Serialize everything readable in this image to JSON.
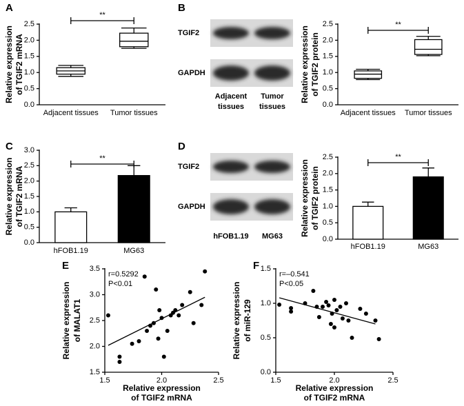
{
  "chart_data": [
    {
      "type": "box",
      "panel": "A",
      "ylabel": [
        "Relative expression",
        "of TGIF2 mRNA"
      ],
      "categories": [
        "Adjacent tissues",
        "Tumor tissues"
      ],
      "boxes": [
        {
          "min": 0.88,
          "q1": 0.95,
          "median": 1.05,
          "q3": 1.15,
          "max": 1.22
        },
        {
          "min": 1.75,
          "q1": 1.8,
          "median": 1.97,
          "q3": 2.22,
          "max": 2.38
        }
      ],
      "ylim": [
        0,
        2.5
      ],
      "yticks": [
        {
          "value": 0,
          "label": "0.0"
        },
        0.5,
        {
          "value": 1,
          "label": "1.0"
        },
        1.5,
        {
          "value": 2,
          "label": "2.0"
        },
        2.5
      ],
      "annotation": "**"
    },
    {
      "type": "box",
      "panel": "B",
      "ylabel": [
        "Relative expression",
        "of TGIF2 protein"
      ],
      "blot": {
        "rows": [
          "TGIF2",
          "GAPDH"
        ],
        "lanes": [
          [
            "Adjacent",
            "tissues"
          ],
          [
            "Tumor",
            "tissues"
          ]
        ]
      },
      "categories": [
        "Adjacent tissues",
        "Tumor tissues"
      ],
      "boxes": [
        {
          "min": 0.78,
          "q1": 0.82,
          "median": 0.95,
          "q3": 1.05,
          "max": 1.1
        },
        {
          "min": 1.52,
          "q1": 1.56,
          "median": 1.72,
          "q3": 2.02,
          "max": 2.12
        }
      ],
      "ylim": [
        0,
        2.5
      ],
      "yticks": [
        {
          "value": 0,
          "label": "0.0"
        },
        0.5,
        {
          "value": 1,
          "label": "1.0"
        },
        1.5,
        {
          "value": 2,
          "label": "2.0"
        },
        2.5
      ],
      "annotation": "**"
    },
    {
      "type": "bar",
      "panel": "C",
      "ylabel": [
        "Relative expression",
        "of TGIF2 mRNA"
      ],
      "categories": [
        "hFOB1.19",
        "MG63"
      ],
      "values": [
        1.0,
        2.18
      ],
      "errors": [
        0.13,
        0.32
      ],
      "colors": [
        "#ffffff",
        "#000000"
      ],
      "ylim": [
        0,
        3
      ],
      "yticks": [
        {
          "value": 0,
          "label": "0.0"
        },
        0.5,
        {
          "value": 1,
          "label": "1.0"
        },
        1.5,
        {
          "value": 2,
          "label": "2.0"
        },
        2.5,
        {
          "value": 3,
          "label": "3.0"
        }
      ],
      "annotation": "**"
    },
    {
      "type": "bar",
      "panel": "D",
      "ylabel": [
        "Relative expression",
        "of TGIF2 protein"
      ],
      "blot": {
        "rows": [
          "TGIF2",
          "GAPDH"
        ],
        "lanes": [
          [
            "hFOB1.19"
          ],
          [
            "MG63"
          ]
        ]
      },
      "categories": [
        "hFOB1.19",
        "MG63"
      ],
      "values": [
        1.0,
        1.9
      ],
      "errors": [
        0.13,
        0.27
      ],
      "colors": [
        "#ffffff",
        "#000000"
      ],
      "ylim": [
        0,
        2.5
      ],
      "yticks": [
        {
          "value": 0,
          "label": "0.0"
        },
        0.5,
        {
          "value": 1,
          "label": "1.0"
        },
        1.5,
        {
          "value": 2,
          "label": "2.0"
        },
        2.5
      ],
      "annotation": "**"
    },
    {
      "type": "scatter",
      "panel": "E",
      "ylabel": [
        "Relative expression",
        "of MALAT1"
      ],
      "xlabel": [
        "Relative expression",
        "of TGIF2 mRNA"
      ],
      "annotations": [
        "r=0.5292",
        "P<0.01"
      ],
      "x": [
        1.53,
        1.63,
        1.63,
        1.74,
        1.8,
        1.85,
        1.87,
        1.9,
        1.93,
        1.95,
        1.97,
        1.98,
        2.0,
        2.02,
        2.05,
        2.08,
        2.1,
        2.12,
        2.15,
        2.18,
        2.25,
        2.28,
        2.35,
        2.38
      ],
      "y": [
        2.6,
        1.8,
        1.7,
        2.05,
        2.1,
        3.35,
        2.3,
        2.4,
        2.45,
        3.1,
        2.15,
        2.7,
        2.55,
        1.8,
        2.3,
        2.6,
        2.65,
        2.7,
        2.6,
        2.8,
        3.05,
        2.45,
        2.8,
        3.45
      ],
      "trendline": {
        "x": [
          1.53,
          2.38
        ],
        "y": [
          2.02,
          2.95
        ]
      },
      "xlim": [
        1.5,
        2.5
      ],
      "xticks": [
        1.5,
        {
          "value": 2,
          "label": "2.0"
        },
        2.5
      ],
      "ylim": [
        1.5,
        3.5
      ],
      "yticks": [
        1.5,
        {
          "value": 2,
          "label": "2.0"
        },
        2.5,
        {
          "value": 3,
          "label": "3.0"
        },
        3.5
      ]
    },
    {
      "type": "scatter",
      "panel": "F",
      "ylabel": [
        "Relative expression",
        "of miR-129"
      ],
      "xlabel": [
        "Relative expression",
        "of TGIF2 mRNA"
      ],
      "annotations": [
        "r=–0.541",
        "P<0.05"
      ],
      "x": [
        1.53,
        1.63,
        1.63,
        1.75,
        1.82,
        1.85,
        1.87,
        1.9,
        1.93,
        1.95,
        1.97,
        1.98,
        2.0,
        2.0,
        2.02,
        2.05,
        2.07,
        2.1,
        2.12,
        2.15,
        2.22,
        2.27,
        2.35,
        2.38
      ],
      "y": [
        0.98,
        0.88,
        0.93,
        1.0,
        1.18,
        0.95,
        0.8,
        0.95,
        1.02,
        0.97,
        0.7,
        0.85,
        1.05,
        0.65,
        0.9,
        0.95,
        0.78,
        1.0,
        0.75,
        0.5,
        0.92,
        0.85,
        0.75,
        0.48
      ],
      "trendline": {
        "x": [
          1.53,
          2.35
        ],
        "y": [
          1.08,
          0.7
        ]
      },
      "xlim": [
        1.5,
        2.5
      ],
      "xticks": [
        1.5,
        {
          "value": 2,
          "label": "2.0"
        },
        2.5
      ],
      "ylim": [
        0,
        1.5
      ],
      "yticks": [
        {
          "value": 0,
          "label": "0.0"
        },
        0.5,
        {
          "value": 1,
          "label": "1.0"
        },
        1.5
      ]
    }
  ]
}
